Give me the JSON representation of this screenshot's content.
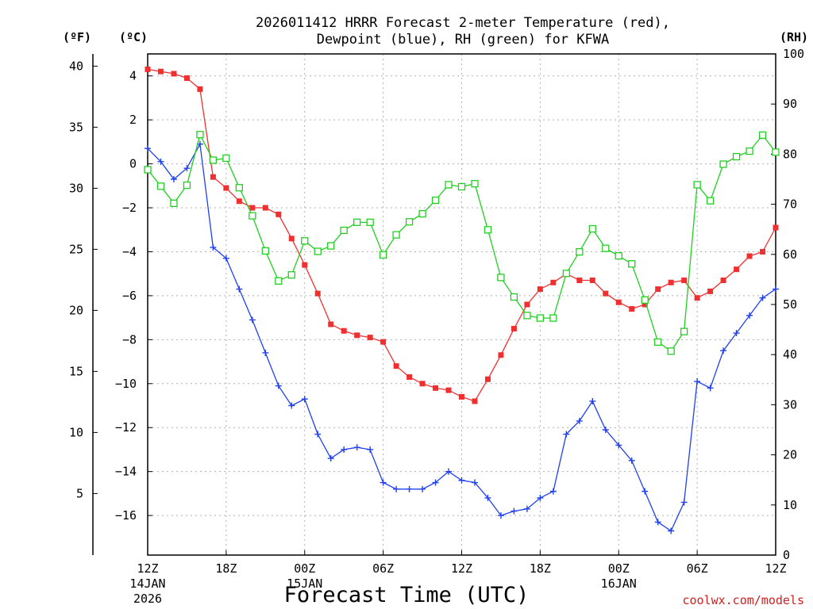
{
  "chart_data": {
    "type": "line",
    "title_line1": "2026011412 HRRR Forecast 2-meter Temperature (red),",
    "title_line2": "Dewpoint (blue), RH (green) for KFWA",
    "xlabel": "Forecast Time (UTC)",
    "credit": "coolwx.com/models",
    "units": {
      "fahrenheit": "(ºF)",
      "celsius": "(ºC)",
      "rh": "(RH)"
    },
    "x_range_hours": [
      0,
      48
    ],
    "x_ticks": [
      {
        "hour": 0,
        "label": "12Z",
        "sub1": "14JAN",
        "sub2": "2026"
      },
      {
        "hour": 6,
        "label": "18Z",
        "sub1": "",
        "sub2": ""
      },
      {
        "hour": 12,
        "label": "00Z",
        "sub1": "15JAN",
        "sub2": ""
      },
      {
        "hour": 18,
        "label": "06Z",
        "sub1": "",
        "sub2": ""
      },
      {
        "hour": 24,
        "label": "12Z",
        "sub1": "",
        "sub2": ""
      },
      {
        "hour": 30,
        "label": "18Z",
        "sub1": "",
        "sub2": ""
      },
      {
        "hour": 36,
        "label": "00Z",
        "sub1": "16JAN",
        "sub2": ""
      },
      {
        "hour": 42,
        "label": "06Z",
        "sub1": "",
        "sub2": ""
      },
      {
        "hour": 48,
        "label": "12Z",
        "sub1": "",
        "sub2": ""
      }
    ],
    "celsius_range": [
      -17.8,
      5.0
    ],
    "celsius_ticks": [
      "4",
      "2",
      "0",
      "−2",
      "−4",
      "−6",
      "−8",
      "−10",
      "−12",
      "−14",
      "−16"
    ],
    "celsius_tick_values": [
      4,
      2,
      0,
      -2,
      -4,
      -6,
      -8,
      -10,
      -12,
      -14,
      -16
    ],
    "fahrenheit_ticks": [
      "40",
      "35",
      "30",
      "25",
      "20",
      "15",
      "10",
      "5"
    ],
    "fahrenheit_tick_values": [
      40,
      35,
      30,
      25,
      20,
      15,
      10,
      5
    ],
    "rh_range": [
      0,
      100
    ],
    "rh_ticks": [
      "100",
      "90",
      "80",
      "70",
      "60",
      "50",
      "40",
      "30",
      "20",
      "10",
      "0"
    ],
    "rh_tick_values": [
      100,
      90,
      80,
      70,
      60,
      50,
      40,
      30,
      20,
      10,
      0
    ],
    "series": [
      {
        "name": "Temperature",
        "axis": "celsius",
        "color": "#f03030",
        "marker": "filled-square",
        "values": [
          4.3,
          4.2,
          4.1,
          3.9,
          3.4,
          -0.6,
          -1.1,
          -1.7,
          -2.0,
          -2.0,
          -2.3,
          -3.4,
          -4.6,
          -5.9,
          -7.3,
          -7.6,
          -7.8,
          -7.9,
          -8.1,
          -9.2,
          -9.7,
          -10.0,
          -10.2,
          -10.3,
          -10.6,
          -10.8,
          -9.8,
          -8.7,
          -7.5,
          -6.4,
          -5.7,
          -5.4,
          -5.0,
          -5.3,
          -5.3,
          -5.9,
          -6.3,
          -6.6,
          -6.4,
          -5.7,
          -5.4,
          -5.3,
          -6.1,
          -5.8,
          -5.3,
          -4.8,
          -4.2,
          -4.0,
          -2.9
        ]
      },
      {
        "name": "Dewpoint",
        "axis": "celsius",
        "color": "#2040f0",
        "marker": "plus",
        "values": [
          0.7,
          0.1,
          -0.7,
          -0.2,
          0.9,
          -3.8,
          -4.3,
          -5.7,
          -7.1,
          -8.6,
          -10.1,
          -11.0,
          -10.7,
          -12.3,
          -13.4,
          -13.0,
          -12.9,
          -13.0,
          -14.5,
          -14.8,
          -14.8,
          -14.8,
          -14.5,
          -14.0,
          -14.4,
          -14.5,
          -15.2,
          -16.0,
          -15.8,
          -15.7,
          -15.2,
          -14.9,
          -12.3,
          -11.7,
          -10.8,
          -12.1,
          -12.8,
          -13.5,
          -14.9,
          -16.3,
          -16.7,
          -15.4,
          -9.9,
          -10.2,
          -8.5,
          -7.7,
          -6.9,
          -6.1,
          -5.7
        ]
      },
      {
        "name": "RH",
        "axis": "rh",
        "color": "#20d020",
        "marker": "open-square",
        "values": [
          76.9,
          73.6,
          70.2,
          73.8,
          83.9,
          78.8,
          79.2,
          73.3,
          67.7,
          60.7,
          54.7,
          55.9,
          62.7,
          60.6,
          61.7,
          64.8,
          66.4,
          66.4,
          59.9,
          63.9,
          66.5,
          68.1,
          70.8,
          73.9,
          73.5,
          74.1,
          64.9,
          55.4,
          51.5,
          47.8,
          47.3,
          47.3,
          56.2,
          60.5,
          65.1,
          61.2,
          59.7,
          58.1,
          50.9,
          42.5,
          40.7,
          44.6,
          73.9,
          70.7,
          78.0,
          79.5,
          80.6,
          83.8,
          80.4
        ]
      }
    ]
  }
}
